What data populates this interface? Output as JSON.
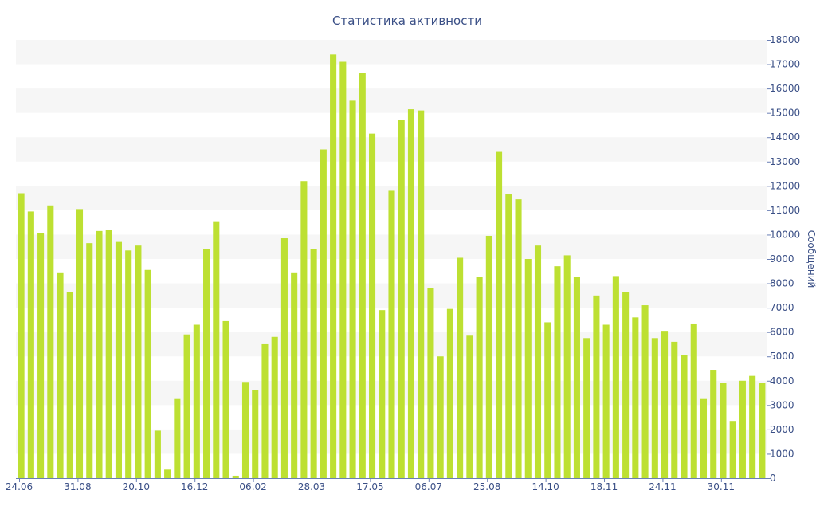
{
  "chart_data": {
    "type": "bar",
    "title": "Статистика активности",
    "ylabel": "Сообщений",
    "ylim": [
      0,
      18000
    ],
    "yticks": [
      0,
      1000,
      2000,
      3000,
      4000,
      5000,
      6000,
      7000,
      8000,
      9000,
      10000,
      11000,
      12000,
      13000,
      14000,
      15000,
      16000,
      17000,
      18000
    ],
    "xtick_labels": [
      {
        "index": 0,
        "label": "24.06"
      },
      {
        "index": 6,
        "label": "31.08"
      },
      {
        "index": 12,
        "label": "20.10"
      },
      {
        "index": 18,
        "label": "16.12"
      },
      {
        "index": 24,
        "label": "06.02"
      },
      {
        "index": 30,
        "label": "28.03"
      },
      {
        "index": 36,
        "label": "17.05"
      },
      {
        "index": 42,
        "label": "06.07"
      },
      {
        "index": 48,
        "label": "25.08"
      },
      {
        "index": 54,
        "label": "14.10"
      },
      {
        "index": 60,
        "label": "18.11"
      },
      {
        "index": 66,
        "label": "24.11"
      },
      {
        "index": 72,
        "label": "30.11"
      }
    ],
    "values": [
      11700,
      10950,
      10050,
      11200,
      8450,
      7650,
      11050,
      9650,
      10150,
      10200,
      9700,
      9350,
      9550,
      8550,
      1950,
      350,
      3250,
      5900,
      6300,
      9400,
      10550,
      6450,
      100,
      3950,
      3600,
      5500,
      5800,
      9850,
      8450,
      12200,
      9400,
      13500,
      17400,
      17100,
      15500,
      16650,
      14150,
      6900,
      11800,
      14700,
      15150,
      15100,
      7800,
      5000,
      6950,
      9050,
      5850,
      8250,
      9950,
      13400,
      11650,
      11450,
      9000,
      9550,
      6400,
      8700,
      9150,
      8250,
      5750,
      7500,
      6300,
      8300,
      7650,
      6600,
      7100,
      5750,
      6050,
      5600,
      5050,
      6350,
      3250,
      4450,
      3900,
      2350,
      4000,
      4200,
      3900
    ],
    "bar_color": "#bde032",
    "band_color": "#f6f6f6",
    "axis_color": "#6a7fb5",
    "text_color": "#3a4f86",
    "grid": true
  }
}
